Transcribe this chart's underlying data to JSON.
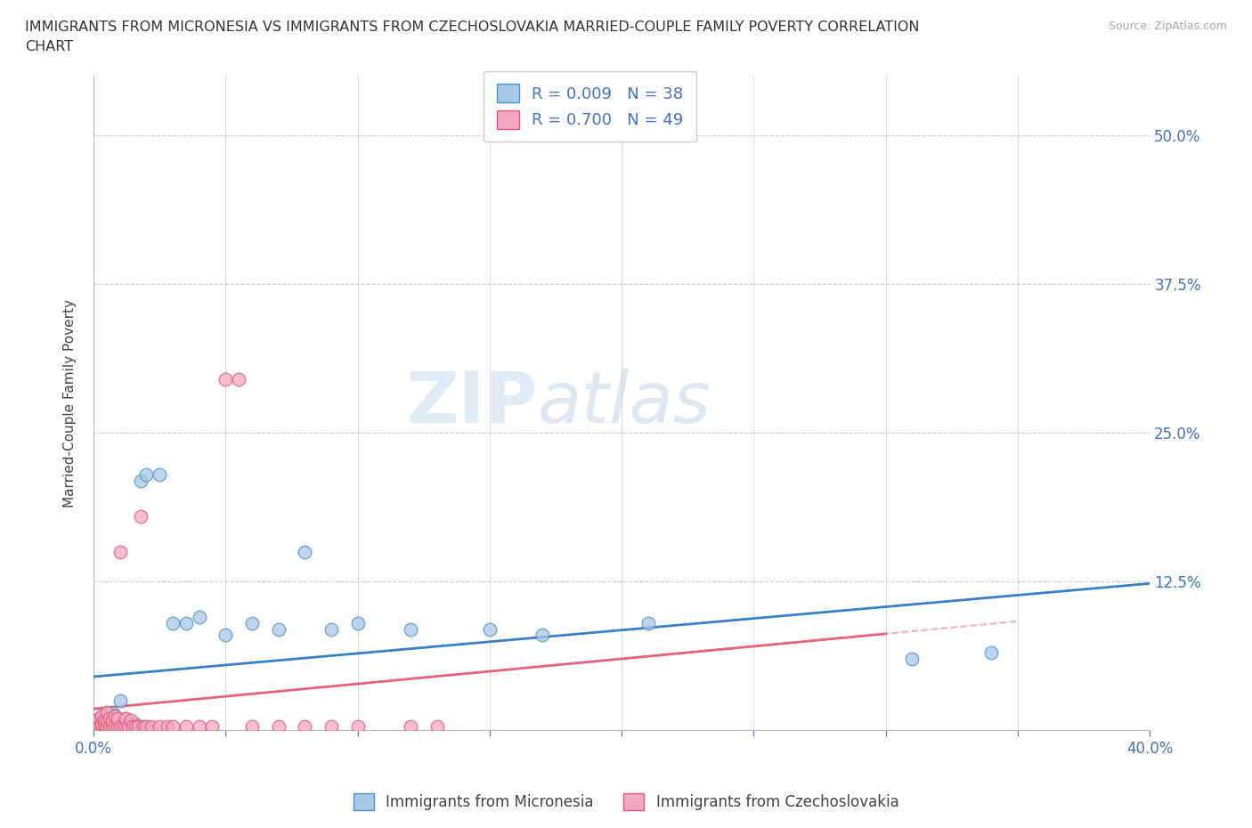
{
  "title_line1": "IMMIGRANTS FROM MICRONESIA VS IMMIGRANTS FROM CZECHOSLOVAKIA MARRIED-COUPLE FAMILY POVERTY CORRELATION",
  "title_line2": "CHART",
  "source": "Source: ZipAtlas.com",
  "ylabel": "Married-Couple Family Poverty",
  "xlim": [
    0.0,
    0.4
  ],
  "ylim": [
    0.0,
    0.55
  ],
  "xticks": [
    0.0,
    0.05,
    0.1,
    0.15,
    0.2,
    0.25,
    0.3,
    0.35,
    0.4
  ],
  "xticklabels": [
    "0.0%",
    "",
    "",
    "",
    "",
    "",
    "",
    "",
    "40.0%"
  ],
  "yticks": [
    0.0,
    0.125,
    0.25,
    0.375,
    0.5
  ],
  "yticklabels": [
    "",
    "12.5%",
    "25.0%",
    "37.5%",
    "50.0%"
  ],
  "blue_face_color": "#A8C8E8",
  "pink_face_color": "#F4A8C0",
  "blue_edge_color": "#5090C8",
  "pink_edge_color": "#E05878",
  "blue_line_color": "#3A7FC1",
  "pink_line_color": "#E8607A",
  "R_blue": 0.009,
  "N_blue": 38,
  "R_pink": 0.7,
  "N_pink": 49,
  "legend_label_blue": "Immigrants from Micronesia",
  "legend_label_pink": "Immigrants from Czechoslovakia",
  "watermark_zip": "ZIP",
  "watermark_atlas": "atlas",
  "background_color": "#FFFFFF",
  "blue_x": [
    0.001,
    0.002,
    0.003,
    0.004,
    0.004,
    0.005,
    0.005,
    0.006,
    0.007,
    0.007,
    0.008,
    0.008,
    0.009,
    0.01,
    0.01,
    0.011,
    0.012,
    0.013,
    0.015,
    0.016,
    0.018,
    0.02,
    0.025,
    0.03,
    0.035,
    0.04,
    0.05,
    0.06,
    0.07,
    0.08,
    0.09,
    0.1,
    0.12,
    0.15,
    0.17,
    0.21,
    0.31,
    0.34
  ],
  "blue_y": [
    0.005,
    0.003,
    0.008,
    0.005,
    0.012,
    0.003,
    0.01,
    0.005,
    0.003,
    0.015,
    0.005,
    0.012,
    0.008,
    0.005,
    0.025,
    0.005,
    0.01,
    0.005,
    0.005,
    0.005,
    0.21,
    0.215,
    0.215,
    0.09,
    0.09,
    0.095,
    0.08,
    0.09,
    0.085,
    0.15,
    0.085,
    0.09,
    0.085,
    0.085,
    0.08,
    0.09,
    0.06,
    0.065
  ],
  "pink_x": [
    0.001,
    0.001,
    0.002,
    0.002,
    0.003,
    0.003,
    0.003,
    0.004,
    0.004,
    0.005,
    0.005,
    0.005,
    0.006,
    0.006,
    0.007,
    0.007,
    0.008,
    0.008,
    0.009,
    0.009,
    0.01,
    0.01,
    0.011,
    0.012,
    0.012,
    0.013,
    0.014,
    0.015,
    0.016,
    0.017,
    0.018,
    0.019,
    0.02,
    0.022,
    0.025,
    0.028,
    0.03,
    0.035,
    0.04,
    0.045,
    0.05,
    0.055,
    0.06,
    0.07,
    0.08,
    0.09,
    0.1,
    0.12,
    0.13
  ],
  "pink_y": [
    0.003,
    0.008,
    0.003,
    0.01,
    0.003,
    0.005,
    0.012,
    0.005,
    0.008,
    0.003,
    0.008,
    0.015,
    0.003,
    0.01,
    0.003,
    0.008,
    0.003,
    0.012,
    0.003,
    0.01,
    0.003,
    0.15,
    0.003,
    0.003,
    0.01,
    0.003,
    0.008,
    0.003,
    0.003,
    0.003,
    0.18,
    0.003,
    0.003,
    0.003,
    0.003,
    0.003,
    0.003,
    0.003,
    0.003,
    0.003,
    0.295,
    0.295,
    0.003,
    0.003,
    0.003,
    0.003,
    0.003,
    0.003,
    0.003
  ]
}
